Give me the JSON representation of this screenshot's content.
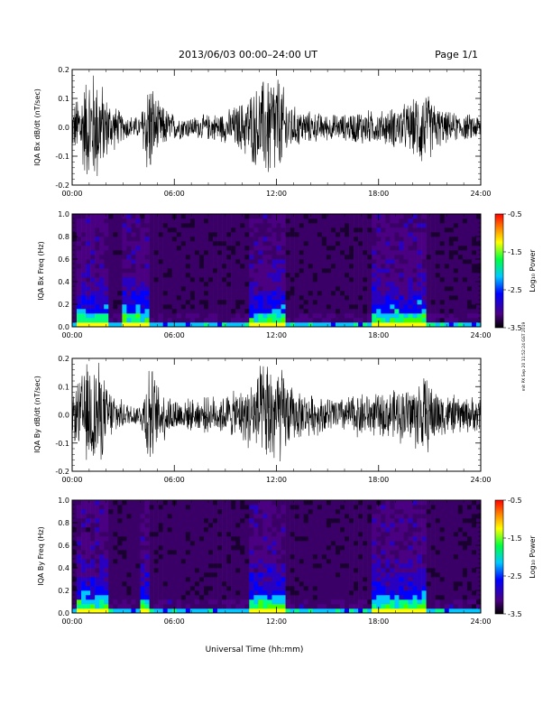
{
  "header": {
    "title": "2013/06/03   00:00–24:00 UT",
    "page": "Page 1/1"
  },
  "side_note": "mit PX Sep 20 11:52:24 GST 2019",
  "xaxis": {
    "label": "Universal Time (hh:mm)",
    "ticks": [
      "00:00",
      "06:00",
      "12:00",
      "18:00",
      "24:00"
    ]
  },
  "colorbar": {
    "label": "Log₁₀ Power",
    "ticks": [
      "-0.5",
      "-1.5",
      "-2.5",
      "-3.5"
    ],
    "range": [
      -3.5,
      -0.5
    ]
  },
  "chart_data": [
    {
      "type": "line",
      "ylabel": "IQA Bx dB/dt (nT/sec)",
      "ylim": [
        -0.2,
        0.2
      ],
      "yticks": [
        "0.2",
        "0.1",
        "0.0",
        "-0.1",
        "-0.2"
      ],
      "x_hours": [
        0,
        1,
        1.5,
        2,
        3,
        4,
        4.5,
        5,
        6,
        7,
        8,
        9,
        10,
        10.5,
        11,
        11.5,
        12,
        12.5,
        13,
        14,
        15,
        16,
        17,
        18,
        19,
        20,
        20.5,
        21,
        21.5,
        22,
        23,
        24
      ],
      "envelope_nT_per_sec": [
        0.08,
        0.22,
        0.22,
        0.12,
        0.05,
        0.04,
        0.22,
        0.1,
        0.05,
        0.04,
        0.05,
        0.06,
        0.1,
        0.14,
        0.16,
        0.22,
        0.22,
        0.14,
        0.08,
        0.06,
        0.05,
        0.05,
        0.07,
        0.06,
        0.08,
        0.1,
        0.16,
        0.12,
        0.08,
        0.06,
        0.05,
        0.05
      ]
    },
    {
      "type": "heatmap",
      "ylabel": "IQA Bx Freq (Hz)",
      "ylim": [
        0.0,
        1.0
      ],
      "yticks": [
        "1.0",
        "0.8",
        "0.6",
        "0.4",
        "0.2",
        "0.0"
      ],
      "value_label": "Log₁₀ Power",
      "vlim": [
        -3.5,
        -0.5
      ],
      "enhanced_power_intervals_hours": [
        [
          0.3,
          2.0
        ],
        [
          3.0,
          4.6
        ],
        [
          10.5,
          12.5
        ],
        [
          17.5,
          20.8
        ],
        [
          21.0,
          21.1
        ],
        [
          23.6,
          23.8
        ]
      ]
    },
    {
      "type": "line",
      "ylabel": "IQA By dB/dt (nT/sec)",
      "ylim": [
        -0.2,
        0.2
      ],
      "yticks": [
        "0.2",
        "0.1",
        "0.0",
        "-0.1",
        "-0.2"
      ],
      "x_hours": [
        0,
        1,
        1.5,
        2,
        3,
        4,
        4.5,
        5,
        6,
        7,
        8,
        9,
        10,
        10.5,
        11,
        11.5,
        12,
        12.5,
        13,
        14,
        15,
        16,
        17,
        18,
        19,
        20,
        20.5,
        21,
        21.5,
        22,
        23,
        24
      ],
      "envelope_nT_per_sec": [
        0.08,
        0.22,
        0.22,
        0.12,
        0.05,
        0.04,
        0.22,
        0.12,
        0.07,
        0.06,
        0.07,
        0.08,
        0.1,
        0.14,
        0.18,
        0.22,
        0.22,
        0.16,
        0.1,
        0.08,
        0.07,
        0.07,
        0.09,
        0.08,
        0.1,
        0.12,
        0.16,
        0.14,
        0.1,
        0.08,
        0.07,
        0.07
      ]
    },
    {
      "type": "heatmap",
      "ylabel": "IQA By Freq (Hz)",
      "ylim": [
        0.0,
        1.0
      ],
      "yticks": [
        "1.0",
        "0.8",
        "0.6",
        "0.4",
        "0.2",
        "0.0"
      ],
      "value_label": "Log₁₀ Power",
      "vlim": [
        -3.5,
        -0.5
      ],
      "enhanced_power_intervals_hours": [
        [
          0.3,
          2.2
        ],
        [
          4.0,
          4.6
        ],
        [
          10.5,
          12.5
        ],
        [
          17.5,
          20.8
        ],
        [
          21.0,
          21.1
        ],
        [
          23.6,
          23.8
        ]
      ]
    }
  ]
}
